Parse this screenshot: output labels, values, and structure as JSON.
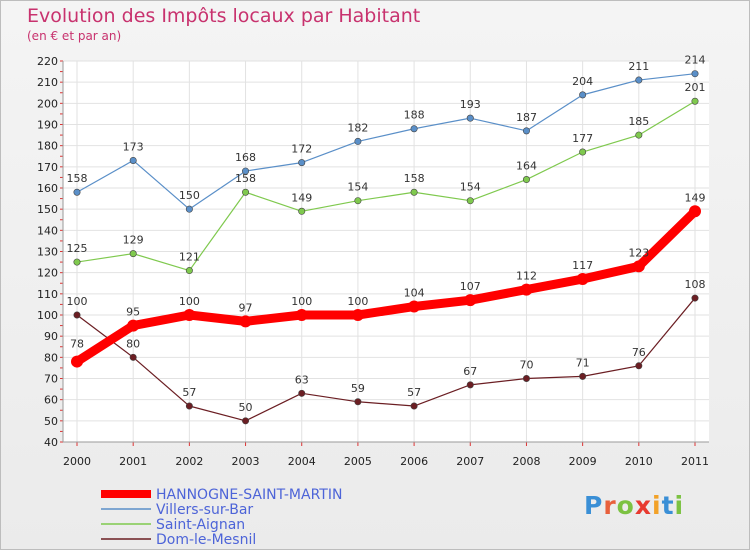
{
  "chart_data": {
    "type": "line",
    "title": "Evolution des Impôts locaux par Habitant",
    "subtitle": "(en € et par an)",
    "categories": [
      "2000",
      "2001",
      "2002",
      "2003",
      "2004",
      "2005",
      "2006",
      "2007",
      "2008",
      "2009",
      "2010",
      "2011"
    ],
    "ylim": [
      40,
      220
    ],
    "yticks": [
      40,
      50,
      60,
      70,
      80,
      90,
      100,
      110,
      120,
      130,
      140,
      150,
      160,
      170,
      180,
      190,
      200,
      210,
      220
    ],
    "grid": true,
    "legend_position": "bottom-left",
    "series": [
      {
        "name": "Villers-sur-Bar",
        "color": "#5a8fc8",
        "values": [
          158,
          173,
          150,
          168,
          172,
          182,
          188,
          193,
          187,
          204,
          211,
          214
        ]
      },
      {
        "name": "Saint-Aignan",
        "color": "#7fc94e",
        "values": [
          125,
          129,
          121,
          158,
          149,
          154,
          158,
          154,
          164,
          177,
          185,
          201
        ]
      },
      {
        "name": "Dom-le-Mesnil",
        "color": "#6b1e23",
        "values": [
          100,
          80,
          57,
          50,
          63,
          59,
          57,
          67,
          70,
          71,
          76,
          108
        ]
      },
      {
        "name": "HANNOGNE-SAINT-MARTIN",
        "color": "#ff0000",
        "values": [
          78,
          95,
          100,
          97,
          100,
          100,
          104,
          107,
          112,
          117,
          123,
          149
        ]
      }
    ]
  },
  "legend_order": [
    3,
    0,
    1,
    2
  ],
  "logo": {
    "letters": [
      "P",
      "r",
      "o",
      "x",
      "i",
      "t",
      "i"
    ],
    "colors": [
      "#3a8fd6",
      "#e8603c",
      "#7cc242",
      "#e83a30",
      "#f2a228",
      "#3a8fd6",
      "#7cc242"
    ]
  }
}
